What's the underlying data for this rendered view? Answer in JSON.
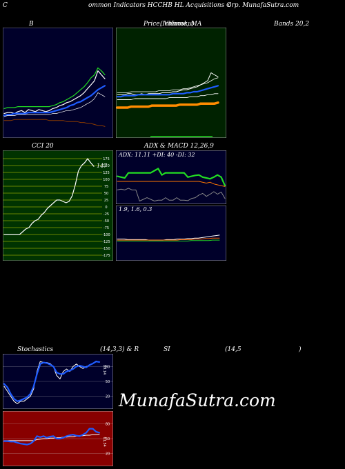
{
  "header": {
    "left": "C",
    "middle": "ommon  Indicators HCCHB HL Acquisitions C",
    "right": "orp. MunafaSutra.com"
  },
  "titles": {
    "b": "B",
    "price": "Price,  Volume,  MA",
    "price_overlap": "(Ichimoku)",
    "bands": "Bands 20,2",
    "cci": "CCI 20",
    "adx_macd": "ADX  & MACD 12,26,9",
    "stoch_left": "Stochastics",
    "stoch_mid": "(14,3,3) & R",
    "stoch_si": "SI",
    "stoch_right": "(14,5",
    "stoch_paren": ")"
  },
  "watermark": "MunafaSutra.com",
  "colors": {
    "navy": "#00002a",
    "dark_green": "#002200",
    "cci_green": "#003300",
    "cci_grid": "#8aa000",
    "rsi_red": "#880000",
    "blue": "#1e5cff",
    "bright_green": "#22dd22",
    "orange": "#ff8c00"
  },
  "chart_data": [
    {
      "type": "line",
      "name": "bollinger-bands",
      "ylim": [
        0,
        100
      ],
      "x_count": 30,
      "series": [
        {
          "color": "#ffffff",
          "width": 1.2,
          "values": [
            19,
            20,
            20,
            19,
            21,
            22,
            20,
            23,
            22,
            21,
            23,
            22,
            21,
            22,
            24,
            25,
            27,
            28,
            30,
            31,
            33,
            35,
            37,
            40,
            44,
            48,
            52,
            62,
            58,
            54
          ]
        },
        {
          "color": "#1e5cff",
          "width": 2.2,
          "values": [
            17,
            18,
            18,
            19,
            19,
            19,
            19,
            20,
            20,
            20,
            20,
            20,
            20,
            20,
            21,
            22,
            23,
            24,
            25,
            27,
            28,
            30,
            31,
            33,
            35,
            37,
            40,
            43,
            45,
            47
          ]
        },
        {
          "color": "#22dd22",
          "width": 1.2,
          "values": [
            24,
            25,
            25,
            25,
            26,
            26,
            26,
            26,
            26,
            26,
            26,
            26,
            26,
            26,
            27,
            28,
            30,
            31,
            33,
            35,
            37,
            40,
            43,
            46,
            50,
            55,
            58,
            65,
            62,
            58
          ]
        },
        {
          "color": "#8a3a00",
          "width": 1.0,
          "values": [
            12,
            12,
            12,
            13,
            13,
            13,
            13,
            13,
            13,
            13,
            13,
            13,
            13,
            12,
            12,
            12,
            12,
            12,
            11,
            11,
            11,
            11,
            10,
            10,
            9,
            9,
            8,
            7,
            7,
            6
          ]
        },
        {
          "color": "#ffffff",
          "width": 0.7,
          "values": [
            16,
            17,
            17,
            17,
            18,
            18,
            18,
            18,
            18,
            18,
            18,
            18,
            18,
            18,
            19,
            19,
            20,
            21,
            22,
            22,
            23,
            24,
            25,
            27,
            29,
            31,
            34,
            40,
            38,
            36
          ]
        }
      ]
    },
    {
      "type": "line",
      "name": "price-volume-ma",
      "ylim": [
        0,
        100
      ],
      "x_count": 30,
      "series": [
        {
          "color": "#ffffff",
          "width": 1.0,
          "values": [
            38,
            38,
            38,
            39,
            39,
            38,
            38,
            39,
            38,
            39,
            39,
            39,
            39,
            40,
            40,
            40,
            41,
            41,
            42,
            43,
            43,
            44,
            45,
            46,
            48,
            50,
            52,
            60,
            58,
            56
          ]
        },
        {
          "color": "#1e5cff",
          "width": 2.2,
          "values": [
            36,
            36,
            37,
            37,
            37,
            37,
            38,
            38,
            38,
            38,
            38,
            38,
            38,
            38,
            38,
            38,
            39,
            39,
            39,
            39,
            40,
            40,
            41,
            41,
            42,
            43,
            44,
            45,
            46,
            47
          ]
        },
        {
          "color": "#ff8c00",
          "width": 3.5,
          "values": [
            25,
            25,
            25,
            25,
            26,
            26,
            26,
            26,
            26,
            26,
            27,
            27,
            27,
            27,
            27,
            27,
            27,
            27,
            28,
            28,
            28,
            28,
            28,
            28,
            29,
            29,
            29,
            29,
            29,
            30
          ]
        },
        {
          "color": "#ffffff",
          "width": 0.9,
          "values": [
            33,
            33,
            33,
            33,
            33,
            34,
            34,
            34,
            34,
            34,
            34,
            34,
            34,
            34,
            34,
            35,
            35,
            35,
            35,
            35,
            35,
            36,
            36,
            36,
            37,
            37,
            38,
            38,
            39,
            39
          ]
        },
        {
          "color": "#ffffff",
          "width": 0.8,
          "values": [
            40,
            40,
            40,
            40,
            41,
            41,
            41,
            41,
            41,
            41,
            41,
            41,
            42,
            42,
            42,
            42,
            43,
            43,
            43,
            44,
            44,
            45,
            46,
            47,
            48,
            49,
            50,
            52,
            54,
            55
          ]
        }
      ]
    },
    {
      "type": "line",
      "name": "cci",
      "ylim": [
        -175,
        175
      ],
      "y_ticks": [
        175,
        150,
        125,
        100,
        75,
        50,
        25,
        0,
        -25,
        -50,
        -75,
        -100,
        -125,
        -150,
        -175
      ],
      "last_label": "147",
      "x_count": 30,
      "series": [
        {
          "color": "#ffffff",
          "width": 1.2,
          "values": [
            -100,
            -100,
            -100,
            -100,
            -100,
            -100,
            -90,
            -80,
            -75,
            -60,
            -50,
            -45,
            -30,
            -20,
            -5,
            5,
            15,
            25,
            25,
            20,
            15,
            20,
            40,
            80,
            130,
            150,
            160,
            175,
            160,
            147
          ]
        }
      ]
    },
    {
      "type": "line",
      "name": "adx",
      "ylim": [
        0,
        100
      ],
      "x_count": 30,
      "series": [
        {
          "color": "#22dd22",
          "width": 2.2,
          "values": [
            62,
            60,
            58,
            70,
            70,
            70,
            70,
            70,
            70,
            70,
            75,
            80,
            65,
            70,
            70,
            70,
            70,
            70,
            70,
            60,
            62,
            64,
            65,
            60,
            58,
            56,
            60,
            65,
            60,
            40
          ]
        },
        {
          "color": "#ff7700",
          "width": 1.0,
          "values": [
            50,
            50,
            50,
            50,
            50,
            50,
            50,
            50,
            50,
            50,
            50,
            50,
            50,
            50,
            50,
            50,
            50,
            50,
            50,
            50,
            50,
            50,
            50,
            48,
            46,
            48,
            44,
            42,
            40,
            38
          ]
        },
        {
          "color": "#888888",
          "width": 1.0,
          "values": [
            30,
            32,
            30,
            34,
            30,
            30,
            4,
            8,
            12,
            8,
            4,
            6,
            6,
            12,
            6,
            6,
            12,
            6,
            6,
            5,
            10,
            12,
            18,
            22,
            15,
            20,
            26,
            20,
            25,
            10
          ]
        }
      ]
    },
    {
      "type": "line",
      "name": "macd",
      "ylim": [
        0,
        100
      ],
      "x_count": 30,
      "series": [
        {
          "color": "#ffffff",
          "width": 1.0,
          "values": [
            38,
            38,
            38,
            37,
            37,
            37,
            37,
            37,
            37,
            36,
            36,
            36,
            36,
            36,
            37,
            37,
            37,
            38,
            38,
            38,
            39,
            39,
            40,
            40,
            41,
            42,
            43,
            44,
            45,
            46
          ]
        },
        {
          "color": "#ff6600",
          "width": 1.0,
          "values": [
            36,
            36,
            36,
            36,
            36,
            36,
            36,
            36,
            36,
            36,
            36,
            36,
            36,
            36,
            36,
            36,
            36,
            36,
            37,
            37,
            37,
            37,
            38,
            38,
            38,
            39,
            39,
            40,
            40,
            40
          ]
        },
        {
          "color": "#22dd22",
          "width": 1.0,
          "values": [
            34,
            34,
            34,
            34,
            34,
            34,
            34,
            34,
            34,
            34,
            34,
            34,
            34,
            34,
            34,
            34,
            34,
            34,
            34,
            34,
            34,
            35,
            35,
            35,
            35,
            35,
            35,
            36,
            36,
            36
          ]
        }
      ]
    },
    {
      "type": "line",
      "name": "stochastics",
      "ylim": [
        0,
        100
      ],
      "y_ticks": [
        80,
        50,
        20
      ],
      "last_label": "89.14",
      "x_count": 30,
      "series": [
        {
          "color": "#ffffff",
          "width": 1.0,
          "values": [
            40,
            30,
            20,
            10,
            5,
            10,
            10,
            15,
            20,
            35,
            70,
            90,
            88,
            88,
            86,
            80,
            62,
            55,
            70,
            75,
            70,
            80,
            85,
            80,
            76,
            80,
            82,
            86,
            91,
            89
          ]
        },
        {
          "color": "#1e5cff",
          "width": 2.2,
          "values": [
            45,
            38,
            25,
            15,
            10,
            12,
            15,
            18,
            25,
            40,
            65,
            85,
            88,
            87,
            84,
            80,
            68,
            65,
            65,
            70,
            72,
            75,
            80,
            82,
            80,
            78,
            83,
            86,
            90,
            89
          ]
        }
      ]
    },
    {
      "type": "line",
      "name": "rsi",
      "ylim": [
        0,
        100
      ],
      "y_ticks": [
        80,
        50,
        20
      ],
      "last_label": "61.54",
      "x_count": 30,
      "series": [
        {
          "color": "#ffffff",
          "width": 1.0,
          "values": [
            46,
            46,
            46,
            46,
            46,
            46,
            46,
            46,
            46,
            46,
            48,
            49,
            50,
            50,
            51,
            51,
            52,
            52,
            53,
            53,
            54,
            54,
            55,
            56,
            56,
            57,
            57,
            58,
            58,
            59
          ]
        },
        {
          "color": "#1e5cff",
          "width": 2.2,
          "values": [
            45,
            45,
            44,
            44,
            42,
            40,
            39,
            38,
            40,
            45,
            55,
            53,
            55,
            52,
            54,
            55,
            50,
            50,
            52,
            55,
            57,
            58,
            56,
            55,
            58,
            62,
            70,
            70,
            64,
            62
          ]
        }
      ]
    }
  ]
}
